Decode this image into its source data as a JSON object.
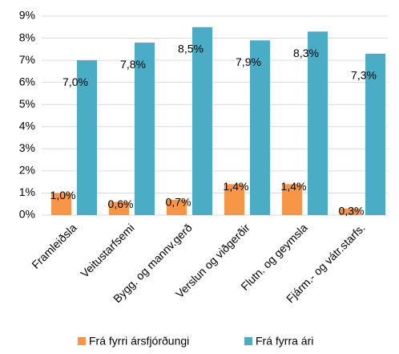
{
  "chart_data": {
    "type": "bar",
    "categories": [
      "Framleiðsla",
      "Veitustarfsemi",
      "Bygg. og mannv.gerð",
      "Verslun og viðgerðir",
      "Flutn. og geymsla",
      "Fjárm.- og vátr.starfs."
    ],
    "series": [
      {
        "name": "Frá fyrri ársfjórðungi",
        "color": "#f79646",
        "values": [
          1.0,
          0.6,
          0.7,
          1.4,
          1.4,
          0.3
        ],
        "value_labels": [
          "1,0%",
          "0,6%",
          "0,7%",
          "1,4%",
          "1,4%",
          "0,3%"
        ]
      },
      {
        "name": "Frá fyrra ári",
        "color": "#4bacc6",
        "values": [
          7.0,
          7.8,
          8.5,
          7.9,
          8.3,
          7.3
        ],
        "value_labels": [
          "7,0%",
          "7,8%",
          "8,5%",
          "7,9%",
          "8,3%",
          "7,3%"
        ]
      }
    ],
    "ylim": [
      0,
      9
    ],
    "yticks": [
      {
        "value": 0,
        "label": "0%"
      },
      {
        "value": 1,
        "label": "1%"
      },
      {
        "value": 2,
        "label": "2%"
      },
      {
        "value": 3,
        "label": "3%"
      },
      {
        "value": 4,
        "label": "4%"
      },
      {
        "value": 5,
        "label": "5%"
      },
      {
        "value": 6,
        "label": "6%"
      },
      {
        "value": 7,
        "label": "7%"
      },
      {
        "value": 8,
        "label": "8%"
      },
      {
        "value": 9,
        "label": "9%"
      }
    ],
    "grid": true,
    "legend": "bottom"
  }
}
